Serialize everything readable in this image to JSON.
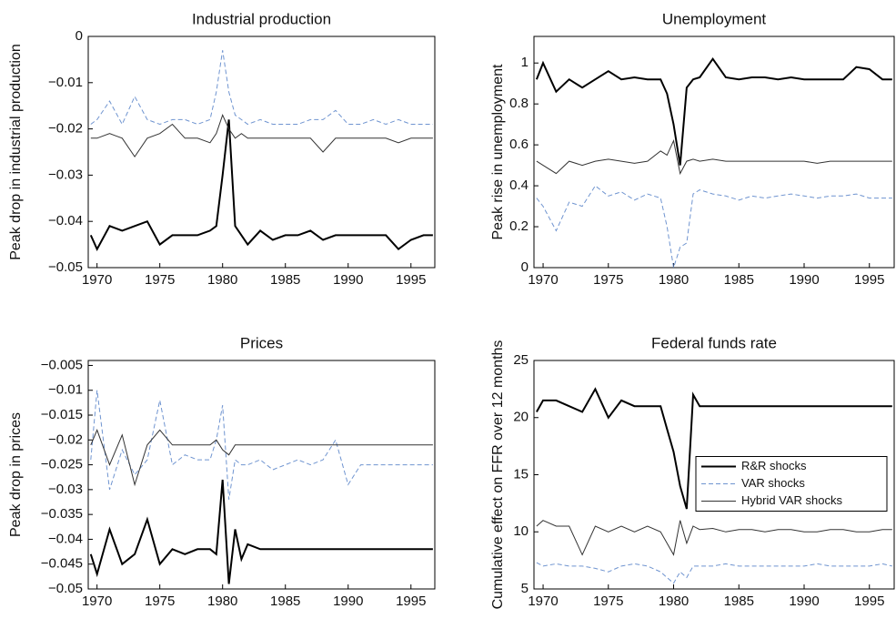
{
  "chart_data": [
    {
      "type": "line",
      "title": "Industrial production",
      "ylabel": "Peak drop in industrial production",
      "x": [
        1969.5,
        1970,
        1971,
        1972,
        1973,
        1974,
        1975,
        1976,
        1977,
        1978,
        1979,
        1979.5,
        1980,
        1980.5,
        1981,
        1981.5,
        1982,
        1983,
        1984,
        1985,
        1986,
        1987,
        1988,
        1989,
        1990,
        1991,
        1992,
        1993,
        1994,
        1995,
        1996,
        1996.75
      ],
      "xlim": [
        1969.3,
        1996.9
      ],
      "xticks": [
        1970,
        1975,
        1980,
        1985,
        1990,
        1995
      ],
      "ylim": [
        -0.05,
        0
      ],
      "yticks": [
        {
          "value": -0.05,
          "label": "−0.05"
        },
        {
          "value": -0.04,
          "label": "−0.04"
        },
        {
          "value": -0.03,
          "label": "−0.03"
        },
        {
          "value": -0.02,
          "label": "−0.02"
        },
        {
          "value": -0.01,
          "label": "−0.01"
        },
        0
      ],
      "series": [
        {
          "color": "#000000",
          "width": 2,
          "style": "solid",
          "values": [
            -0.043,
            -0.046,
            -0.041,
            -0.042,
            -0.041,
            -0.04,
            -0.045,
            -0.043,
            -0.043,
            -0.043,
            -0.042,
            -0.041,
            -0.03,
            -0.018,
            -0.041,
            -0.043,
            -0.045,
            -0.042,
            -0.044,
            -0.043,
            -0.043,
            -0.042,
            -0.044,
            -0.043,
            -0.043,
            -0.043,
            -0.043,
            -0.043,
            -0.046,
            -0.044,
            -0.043,
            -0.043
          ]
        },
        {
          "color": "#6f94d0",
          "width": 1,
          "style": "dashed",
          "values": [
            -0.019,
            -0.018,
            -0.014,
            -0.019,
            -0.013,
            -0.018,
            -0.019,
            -0.018,
            -0.018,
            -0.019,
            -0.018,
            -0.012,
            -0.003,
            -0.012,
            -0.017,
            -0.018,
            -0.019,
            -0.018,
            -0.019,
            -0.019,
            -0.019,
            -0.018,
            -0.018,
            -0.016,
            -0.019,
            -0.019,
            -0.018,
            -0.019,
            -0.018,
            -0.019,
            -0.019,
            -0.019
          ]
        },
        {
          "color": "#333333",
          "width": 1,
          "style": "solid",
          "values": [
            -0.022,
            -0.022,
            -0.021,
            -0.022,
            -0.026,
            -0.022,
            -0.021,
            -0.019,
            -0.022,
            -0.022,
            -0.023,
            -0.021,
            -0.017,
            -0.02,
            -0.022,
            -0.021,
            -0.022,
            -0.022,
            -0.022,
            -0.022,
            -0.022,
            -0.022,
            -0.025,
            -0.022,
            -0.022,
            -0.022,
            -0.022,
            -0.022,
            -0.023,
            -0.022,
            -0.022,
            -0.022
          ]
        }
      ]
    },
    {
      "type": "line",
      "title": "Unemployment",
      "ylabel": "Peak rise in unemployment",
      "x": [
        1969.5,
        1970,
        1971,
        1972,
        1973,
        1974,
        1975,
        1976,
        1977,
        1978,
        1979,
        1979.5,
        1980,
        1980.5,
        1981,
        1981.5,
        1982,
        1983,
        1984,
        1985,
        1986,
        1987,
        1988,
        1989,
        1990,
        1991,
        1992,
        1993,
        1994,
        1995,
        1996,
        1996.75
      ],
      "xlim": [
        1969.3,
        1996.9
      ],
      "xticks": [
        1970,
        1975,
        1980,
        1985,
        1990,
        1995
      ],
      "ylim": [
        0,
        1.13
      ],
      "yticks": [
        0,
        0.2,
        0.4,
        0.6,
        0.8,
        1
      ],
      "series": [
        {
          "color": "#000000",
          "width": 2,
          "style": "solid",
          "values": [
            0.92,
            1.0,
            0.86,
            0.92,
            0.88,
            0.92,
            0.96,
            0.92,
            0.93,
            0.92,
            0.92,
            0.85,
            0.7,
            0.5,
            0.88,
            0.92,
            0.93,
            1.02,
            0.93,
            0.92,
            0.93,
            0.93,
            0.92,
            0.93,
            0.92,
            0.92,
            0.92,
            0.92,
            0.98,
            0.97,
            0.92,
            0.92
          ]
        },
        {
          "color": "#6f94d0",
          "width": 1,
          "style": "dashed",
          "values": [
            0.34,
            0.3,
            0.18,
            0.32,
            0.3,
            0.4,
            0.35,
            0.37,
            0.33,
            0.36,
            0.34,
            0.2,
            0.0,
            0.1,
            0.12,
            0.36,
            0.38,
            0.36,
            0.35,
            0.33,
            0.35,
            0.34,
            0.35,
            0.36,
            0.35,
            0.34,
            0.35,
            0.35,
            0.36,
            0.34,
            0.34,
            0.34
          ]
        },
        {
          "color": "#333333",
          "width": 1,
          "style": "solid",
          "values": [
            0.52,
            0.5,
            0.46,
            0.52,
            0.5,
            0.52,
            0.53,
            0.52,
            0.51,
            0.52,
            0.57,
            0.55,
            0.62,
            0.46,
            0.52,
            0.53,
            0.52,
            0.53,
            0.52,
            0.52,
            0.52,
            0.52,
            0.52,
            0.52,
            0.52,
            0.51,
            0.52,
            0.52,
            0.52,
            0.52,
            0.52,
            0.52
          ]
        }
      ]
    },
    {
      "type": "line",
      "title": "Prices",
      "ylabel": "Peak drop in prices",
      "x": [
        1969.5,
        1970,
        1971,
        1972,
        1973,
        1974,
        1975,
        1976,
        1977,
        1978,
        1979,
        1979.5,
        1980,
        1980.5,
        1981,
        1981.5,
        1982,
        1983,
        1984,
        1985,
        1986,
        1987,
        1988,
        1989,
        1990,
        1991,
        1992,
        1993,
        1994,
        1995,
        1996,
        1996.75
      ],
      "xlim": [
        1969.3,
        1996.9
      ],
      "xticks": [
        1970,
        1975,
        1980,
        1985,
        1990,
        1995
      ],
      "ylim": [
        -0.05,
        -0.004
      ],
      "yticks": [
        {
          "value": -0.05,
          "label": "−0.05"
        },
        {
          "value": -0.045,
          "label": "−0.045"
        },
        {
          "value": -0.04,
          "label": "−0.04"
        },
        {
          "value": -0.035,
          "label": "−0.035"
        },
        {
          "value": -0.03,
          "label": "−0.03"
        },
        {
          "value": -0.025,
          "label": "−0.025"
        },
        {
          "value": -0.02,
          "label": "−0.02"
        },
        {
          "value": -0.015,
          "label": "−0.015"
        },
        {
          "value": -0.01,
          "label": "−0.01"
        },
        {
          "value": -0.005,
          "label": "−0.005"
        }
      ],
      "series": [
        {
          "color": "#000000",
          "width": 2,
          "style": "solid",
          "values": [
            -0.043,
            -0.047,
            -0.038,
            -0.045,
            -0.043,
            -0.036,
            -0.045,
            -0.042,
            -0.043,
            -0.042,
            -0.042,
            -0.043,
            -0.028,
            -0.049,
            -0.038,
            -0.044,
            -0.041,
            -0.042,
            -0.042,
            -0.042,
            -0.042,
            -0.042,
            -0.042,
            -0.042,
            -0.042,
            -0.042,
            -0.042,
            -0.042,
            -0.042,
            -0.042,
            -0.042,
            -0.042
          ]
        },
        {
          "color": "#6f94d0",
          "width": 1,
          "style": "dashed",
          "values": [
            -0.024,
            -0.01,
            -0.03,
            -0.022,
            -0.027,
            -0.024,
            -0.012,
            -0.025,
            -0.023,
            -0.024,
            -0.024,
            -0.02,
            -0.013,
            -0.032,
            -0.024,
            -0.025,
            -0.025,
            -0.024,
            -0.026,
            -0.025,
            -0.024,
            -0.025,
            -0.024,
            -0.02,
            -0.029,
            -0.025,
            -0.025,
            -0.025,
            -0.025,
            -0.025,
            -0.025,
            -0.025
          ]
        },
        {
          "color": "#333333",
          "width": 1,
          "style": "solid",
          "values": [
            -0.021,
            -0.018,
            -0.025,
            -0.019,
            -0.029,
            -0.021,
            -0.018,
            -0.021,
            -0.021,
            -0.021,
            -0.021,
            -0.02,
            -0.022,
            -0.023,
            -0.021,
            -0.021,
            -0.021,
            -0.021,
            -0.021,
            -0.021,
            -0.021,
            -0.021,
            -0.021,
            -0.021,
            -0.021,
            -0.021,
            -0.021,
            -0.021,
            -0.021,
            -0.021,
            -0.021,
            -0.021
          ]
        }
      ]
    },
    {
      "type": "line",
      "title": "Federal funds rate",
      "ylabel": "Cumulative effect on FFR over 12 months",
      "x": [
        1969.5,
        1970,
        1971,
        1972,
        1973,
        1974,
        1975,
        1976,
        1977,
        1978,
        1979,
        1979.5,
        1980,
        1980.5,
        1981,
        1981.5,
        1982,
        1983,
        1984,
        1985,
        1986,
        1987,
        1988,
        1989,
        1990,
        1991,
        1992,
        1993,
        1994,
        1995,
        1996,
        1996.75
      ],
      "xlim": [
        1969.3,
        1996.9
      ],
      "xticks": [
        1970,
        1975,
        1980,
        1985,
        1990,
        1995
      ],
      "ylim": [
        5,
        25
      ],
      "yticks": [
        5,
        10,
        15,
        20,
        25
      ],
      "legend": "right",
      "series": [
        {
          "name": "R&R shocks",
          "color": "#000000",
          "width": 2,
          "style": "solid",
          "values": [
            20.5,
            21.5,
            21.5,
            21.0,
            20.5,
            22.5,
            20.0,
            21.5,
            21.0,
            21.0,
            21.0,
            19.0,
            17.0,
            14.0,
            12.0,
            22.0,
            21.0,
            21.0,
            21.0,
            21.0,
            21.0,
            21.0,
            21.0,
            21.0,
            21.0,
            21.0,
            21.0,
            21.0,
            21.0,
            21.0,
            21.0,
            21.0
          ]
        },
        {
          "name": "VAR shocks",
          "color": "#6f94d0",
          "width": 1,
          "style": "dashed",
          "values": [
            7.3,
            7.0,
            7.2,
            7.0,
            7.0,
            6.8,
            6.5,
            7.0,
            7.2,
            7.0,
            6.5,
            6.0,
            5.5,
            6.5,
            6.0,
            7.0,
            7.0,
            7.0,
            7.2,
            7.0,
            7.0,
            7.0,
            7.0,
            7.0,
            7.0,
            7.2,
            7.0,
            7.0,
            7.0,
            7.0,
            7.2,
            7.0
          ]
        },
        {
          "name": "Hybrid VAR shocks",
          "color": "#333333",
          "width": 1,
          "style": "solid",
          "values": [
            10.5,
            11.0,
            10.5,
            10.5,
            8.0,
            10.5,
            10.0,
            10.5,
            10.0,
            10.5,
            10.0,
            9.0,
            8.0,
            11.0,
            9.0,
            10.5,
            10.2,
            10.3,
            10.0,
            10.2,
            10.2,
            10.0,
            10.2,
            10.2,
            10.0,
            10.0,
            10.2,
            10.2,
            10.0,
            10.0,
            10.2,
            10.2
          ]
        }
      ]
    }
  ]
}
